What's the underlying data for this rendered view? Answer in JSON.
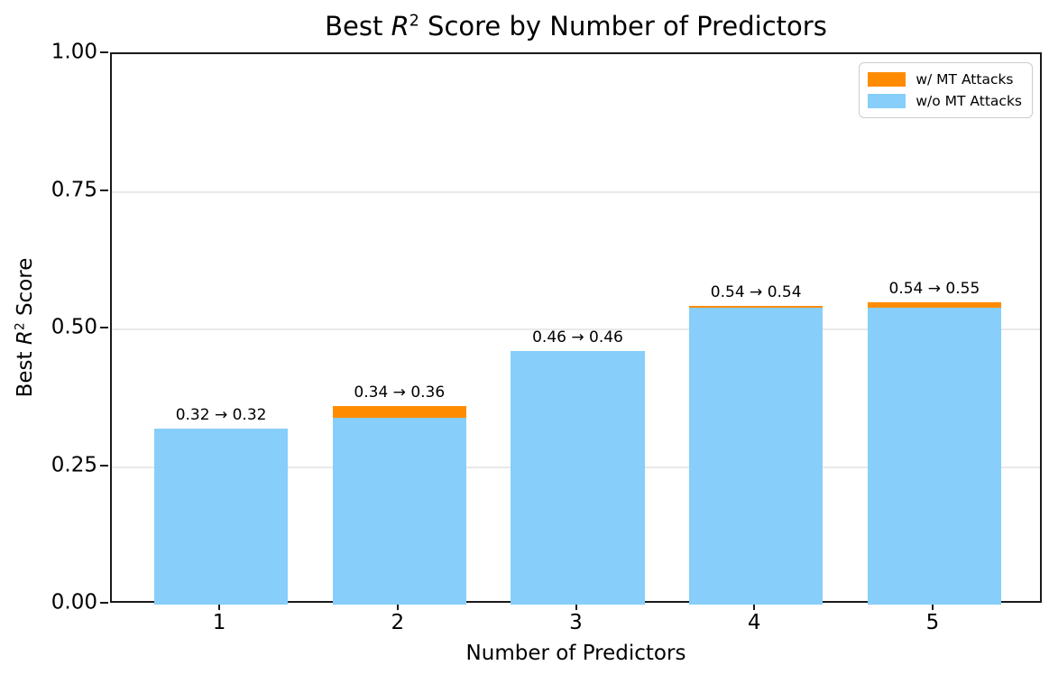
{
  "figure": {
    "background": "#ffffff",
    "title": {
      "prefix": "Best ",
      "math_var": "R",
      "math_sup": "2",
      "suffix": " Score by Number of Predictors"
    },
    "x_axis": {
      "label": "Number of Predictors"
    },
    "y_axis": {
      "label_prefix": "Best ",
      "label_math_var": "R",
      "label_math_sup": "2",
      "label_suffix": " Score"
    },
    "legend": {
      "items": [
        {
          "label": "w/ MT Attacks",
          "color": "#FF8C00"
        },
        {
          "label": "w/o MT Attacks",
          "color": "#87CEFA"
        }
      ]
    },
    "colors": {
      "spine": "#1a1a1a",
      "grid": "#e9e9e9",
      "bar_blue": "#87CEFA",
      "bar_orange": "#FF8C00"
    }
  },
  "chart_data": {
    "type": "bar",
    "title": "Best R^2 Score by Number of Predictors",
    "xlabel": "Number of Predictors",
    "ylabel": "Best R^2 Score",
    "categories": [
      "1",
      "2",
      "3",
      "4",
      "5"
    ],
    "series": [
      {
        "name": "w/ MT Attacks",
        "color": "#FF8C00",
        "values": [
          0.32,
          0.36,
          0.46,
          0.543,
          0.55
        ]
      },
      {
        "name": "w/o MT Attacks",
        "color": "#87CEFA",
        "values": [
          0.32,
          0.34,
          0.46,
          0.54,
          0.54
        ]
      }
    ],
    "bar_labels": [
      "0.32 → 0.32",
      "0.34 → 0.36",
      "0.46 → 0.46",
      "0.54 → 0.54",
      "0.54 → 0.55"
    ],
    "ylim": [
      0,
      1.0
    ],
    "yticks": [
      0.0,
      0.25,
      0.5,
      0.75,
      1.0
    ],
    "ytick_labels": [
      "0.00",
      "0.25",
      "0.50",
      "0.75",
      "1.00"
    ],
    "bar_width_ratio": 0.75,
    "xlim": [
      0.3875,
      5.6125
    ],
    "grid": true,
    "legend_position": "upper right"
  }
}
